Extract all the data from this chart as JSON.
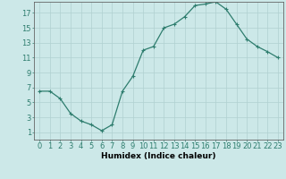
{
  "x": [
    0,
    1,
    2,
    3,
    4,
    5,
    6,
    7,
    8,
    9,
    10,
    11,
    12,
    13,
    14,
    15,
    16,
    17,
    18,
    19,
    20,
    21,
    22,
    23
  ],
  "y": [
    6.5,
    6.5,
    5.5,
    3.5,
    2.5,
    2.0,
    1.2,
    2.0,
    6.5,
    8.5,
    12.0,
    12.5,
    15.0,
    15.5,
    16.5,
    18.0,
    18.2,
    18.5,
    17.5,
    15.5,
    13.5,
    12.5,
    11.8,
    11.0
  ],
  "line_color": "#2e7d6e",
  "marker": "+",
  "marker_size": 3,
  "marker_lw": 0.8,
  "line_width": 0.9,
  "bg_color": "#cce8e8",
  "grid_color": "#b0d0d0",
  "xlabel": "Humidex (Indice chaleur)",
  "xlim": [
    -0.5,
    23.5
  ],
  "ylim": [
    0,
    18.5
  ],
  "yticks": [
    1,
    3,
    5,
    7,
    9,
    11,
    13,
    15,
    17
  ],
  "xticks": [
    0,
    1,
    2,
    3,
    4,
    5,
    6,
    7,
    8,
    9,
    10,
    11,
    12,
    13,
    14,
    15,
    16,
    17,
    18,
    19,
    20,
    21,
    22,
    23
  ],
  "label_fontsize": 6.5,
  "tick_fontsize": 6.0
}
